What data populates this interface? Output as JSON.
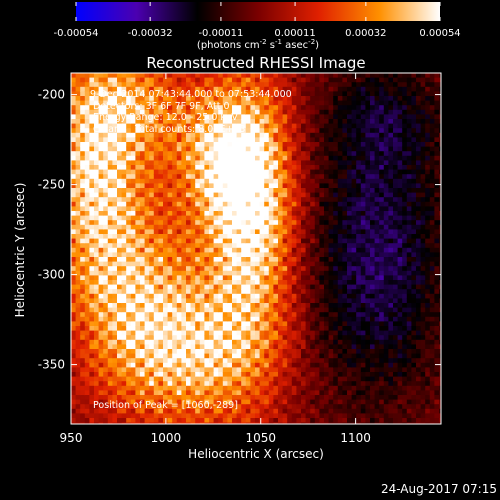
{
  "colorbar": {
    "ticks": [
      "-0.00054",
      "-0.00032",
      "-0.00011",
      "0.00011",
      "0.00032",
      "0.00054"
    ],
    "tick_values": [
      -0.00054,
      -0.00032,
      -0.00011,
      0.00011,
      0.00032,
      0.00054
    ],
    "range": [
      -0.00054,
      0.00054
    ],
    "units_parts": [
      "(photons cm",
      "-2",
      " s",
      "-1",
      " asec",
      "-2",
      ")"
    ],
    "colors": [
      "#0000ff",
      "#4b00b0",
      "#000000",
      "#7a0000",
      "#e02000",
      "#ff9000",
      "#ffffff"
    ]
  },
  "chart_data": {
    "type": "heatmap",
    "title": "Reconstructed RHESSI Image",
    "xlabel": "Heliocentric X (arcsec)",
    "ylabel": "Heliocentric Y (arcsec)",
    "xlim": [
      950,
      1145
    ],
    "ylim": [
      -383,
      -188
    ],
    "x_ticks": [
      950,
      1000,
      1050,
      1100
    ],
    "y_ticks": [
      -200,
      -250,
      -300,
      -350
    ],
    "x_tick_labels": [
      "950",
      "1000",
      "1050",
      "1100"
    ],
    "y_tick_labels": [
      "-200",
      "-250",
      "-300",
      "-350"
    ],
    "annotations": [
      "9-Dec-2014 07:43:44.000 to 07:53:44.000",
      "Detectors: 3F 6F 7F 9F, Att 0",
      "Energy Range: 12.0 - 25.0 keV",
      "Clean     Total counts: 8.04E+03"
    ],
    "peak_label": "Position of Peak = [1060,-289]",
    "peak": [
      1060,
      -289
    ]
  },
  "footer": {
    "date": "24-Aug-2017 07:15"
  }
}
